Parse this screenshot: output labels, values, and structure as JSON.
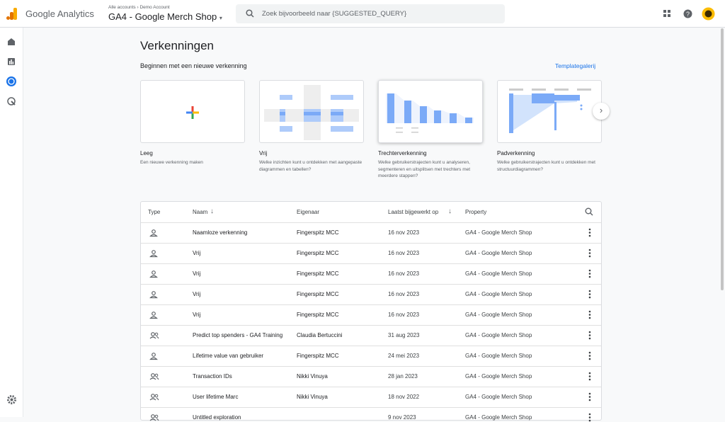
{
  "header": {
    "product": "Google Analytics",
    "breadcrumb": [
      "Alle accounts",
      "Demo Account"
    ],
    "property": "GA4 - Google Merch Shop",
    "search_placeholder": "Zoek bijvoorbeeld naar {SUGGESTED_QUERY}"
  },
  "main": {
    "title": "Verkenningen",
    "subtitle": "Beginnen met een nieuwe verkenning",
    "gallery_link": "Templategalerij"
  },
  "templates": [
    {
      "name": "Leeg",
      "description": "Een nieuwe verkenning maken"
    },
    {
      "name": "Vrij",
      "description": "Welke inzichten kunt u ontdekken met aangepaste diagrammen en tabellen?"
    },
    {
      "name": "Trechterverkenning",
      "description": "Welke gebruikerstrajecten kunt u analyseren, segmenteren en uitsplitsen met trechters met meerdere stappen?"
    },
    {
      "name": "Padverkenning",
      "description": "Welke gebruikerstrajecten kunt u ontdekken met structuurdiagrammen?"
    }
  ],
  "table": {
    "headers": [
      "Type",
      "Naam",
      "Eigenaar",
      "Laatst bijgewerkt op",
      "Property"
    ],
    "rows": [
      {
        "name": "Naamloze verkenning",
        "owner": "Fingerspitz MCC",
        "date": "16 nov 2023",
        "property": "GA4 - Google Merch Shop"
      },
      {
        "name": "Vrij",
        "owner": "Fingerspitz MCC",
        "date": "16 nov 2023",
        "property": "GA4 - Google Merch Shop"
      },
      {
        "name": "Vrij",
        "owner": "Fingerspitz MCC",
        "date": "16 nov 2023",
        "property": "GA4 - Google Merch Shop"
      },
      {
        "name": "Vrij",
        "owner": "Fingerspitz MCC",
        "date": "16 nov 2023",
        "property": "GA4 - Google Merch Shop"
      },
      {
        "name": "Vrij",
        "owner": "Fingerspitz MCC",
        "date": "16 nov 2023",
        "property": "GA4 - Google Merch Shop"
      },
      {
        "name": "Predict top spenders - GA4 Training",
        "owner": "Claudia Bertuccini",
        "date": "31 aug 2023",
        "property": "GA4 - Google Merch Shop"
      },
      {
        "name": "Lifetime value van gebruiker",
        "owner": "Fingerspitz MCC",
        "date": "24 mei 2023",
        "property": "GA4 - Google Merch Shop"
      },
      {
        "name": "Transaction IDs",
        "owner": "Nikki Vinuya",
        "date": "28 jan 2023",
        "property": "GA4 - Google Merch Shop"
      },
      {
        "name": "User lifetime Marc",
        "owner": "Nikki Vinuya",
        "date": "18 nov 2022",
        "property": "GA4 - Google Merch Shop"
      },
      {
        "name": "Untitled exploration",
        "date": "9 nov 2023",
        "property": "GA4 - Google Merch Shop"
      }
    ]
  }
}
